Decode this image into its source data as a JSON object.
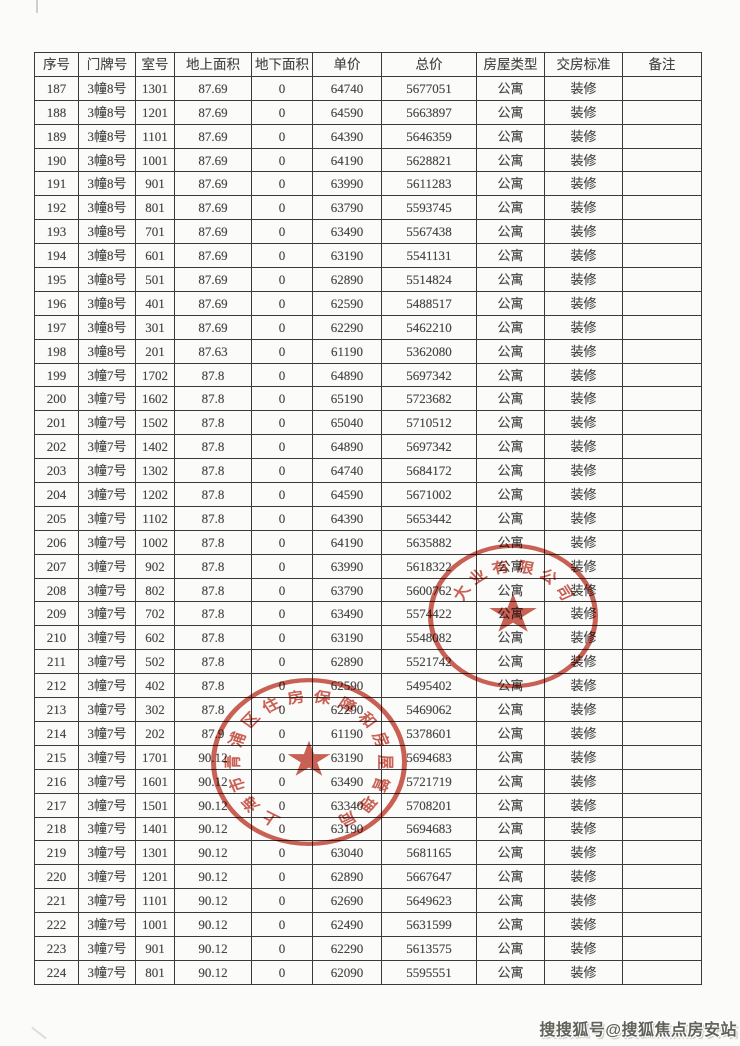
{
  "page": {
    "watermark": "搜搜狐号@搜狐焦点房安站"
  },
  "colors": {
    "stamp_red": "#c0392b",
    "table_border": "#3a3a3a",
    "table_text": "#474747",
    "watermark_text": "#62625a"
  },
  "table": {
    "columns": [
      "序号",
      "门牌号",
      "室号",
      "地上面积",
      "地下面积",
      "单价",
      "总价",
      "房屋类型",
      "交房标准",
      "备注"
    ],
    "column_keys": [
      "index",
      "door_no",
      "room_no",
      "area_above",
      "area_below",
      "unit_price",
      "total_price",
      "house_type",
      "delivery_standard",
      "remark"
    ],
    "rows": [
      [
        "187",
        "3幢8号",
        "1301",
        "87.69",
        "0",
        "64740",
        "5677051",
        "公寓",
        "装修",
        ""
      ],
      [
        "188",
        "3幢8号",
        "1201",
        "87.69",
        "0",
        "64590",
        "5663897",
        "公寓",
        "装修",
        ""
      ],
      [
        "189",
        "3幢8号",
        "1101",
        "87.69",
        "0",
        "64390",
        "5646359",
        "公寓",
        "装修",
        ""
      ],
      [
        "190",
        "3幢8号",
        "1001",
        "87.69",
        "0",
        "64190",
        "5628821",
        "公寓",
        "装修",
        ""
      ],
      [
        "191",
        "3幢8号",
        "901",
        "87.69",
        "0",
        "63990",
        "5611283",
        "公寓",
        "装修",
        ""
      ],
      [
        "192",
        "3幢8号",
        "801",
        "87.69",
        "0",
        "63790",
        "5593745",
        "公寓",
        "装修",
        ""
      ],
      [
        "193",
        "3幢8号",
        "701",
        "87.69",
        "0",
        "63490",
        "5567438",
        "公寓",
        "装修",
        ""
      ],
      [
        "194",
        "3幢8号",
        "601",
        "87.69",
        "0",
        "63190",
        "5541131",
        "公寓",
        "装修",
        ""
      ],
      [
        "195",
        "3幢8号",
        "501",
        "87.69",
        "0",
        "62890",
        "5514824",
        "公寓",
        "装修",
        ""
      ],
      [
        "196",
        "3幢8号",
        "401",
        "87.69",
        "0",
        "62590",
        "5488517",
        "公寓",
        "装修",
        ""
      ],
      [
        "197",
        "3幢8号",
        "301",
        "87.69",
        "0",
        "62290",
        "5462210",
        "公寓",
        "装修",
        ""
      ],
      [
        "198",
        "3幢8号",
        "201",
        "87.63",
        "0",
        "61190",
        "5362080",
        "公寓",
        "装修",
        ""
      ],
      [
        "199",
        "3幢7号",
        "1702",
        "87.8",
        "0",
        "64890",
        "5697342",
        "公寓",
        "装修",
        ""
      ],
      [
        "200",
        "3幢7号",
        "1602",
        "87.8",
        "0",
        "65190",
        "5723682",
        "公寓",
        "装修",
        ""
      ],
      [
        "201",
        "3幢7号",
        "1502",
        "87.8",
        "0",
        "65040",
        "5710512",
        "公寓",
        "装修",
        ""
      ],
      [
        "202",
        "3幢7号",
        "1402",
        "87.8",
        "0",
        "64890",
        "5697342",
        "公寓",
        "装修",
        ""
      ],
      [
        "203",
        "3幢7号",
        "1302",
        "87.8",
        "0",
        "64740",
        "5684172",
        "公寓",
        "装修",
        ""
      ],
      [
        "204",
        "3幢7号",
        "1202",
        "87.8",
        "0",
        "64590",
        "5671002",
        "公寓",
        "装修",
        ""
      ],
      [
        "205",
        "3幢7号",
        "1102",
        "87.8",
        "0",
        "64390",
        "5653442",
        "公寓",
        "装修",
        ""
      ],
      [
        "206",
        "3幢7号",
        "1002",
        "87.8",
        "0",
        "64190",
        "5635882",
        "公寓",
        "装修",
        ""
      ],
      [
        "207",
        "3幢7号",
        "902",
        "87.8",
        "0",
        "63990",
        "5618322",
        "公寓",
        "装修",
        ""
      ],
      [
        "208",
        "3幢7号",
        "802",
        "87.8",
        "0",
        "63790",
        "5600762",
        "公寓",
        "装修",
        ""
      ],
      [
        "209",
        "3幢7号",
        "702",
        "87.8",
        "0",
        "63490",
        "5574422",
        "公寓",
        "装修",
        ""
      ],
      [
        "210",
        "3幢7号",
        "602",
        "87.8",
        "0",
        "63190",
        "5548082",
        "公寓",
        "装修",
        ""
      ],
      [
        "211",
        "3幢7号",
        "502",
        "87.8",
        "0",
        "62890",
        "5521742",
        "公寓",
        "装修",
        ""
      ],
      [
        "212",
        "3幢7号",
        "402",
        "87.8",
        "0",
        "62590",
        "5495402",
        "公寓",
        "装修",
        ""
      ],
      [
        "213",
        "3幢7号",
        "302",
        "87.8",
        "0",
        "62290",
        "5469062",
        "公寓",
        "装修",
        ""
      ],
      [
        "214",
        "3幢7号",
        "202",
        "87.9",
        "0",
        "61190",
        "5378601",
        "公寓",
        "装修",
        ""
      ],
      [
        "215",
        "3幢7号",
        "1701",
        "90.12",
        "0",
        "63190",
        "5694683",
        "公寓",
        "装修",
        ""
      ],
      [
        "216",
        "3幢7号",
        "1601",
        "90.12",
        "0",
        "63490",
        "5721719",
        "公寓",
        "装修",
        ""
      ],
      [
        "217",
        "3幢7号",
        "1501",
        "90.12",
        "0",
        "63340",
        "5708201",
        "公寓",
        "装修",
        ""
      ],
      [
        "218",
        "3幢7号",
        "1401",
        "90.12",
        "0",
        "63190",
        "5694683",
        "公寓",
        "装修",
        ""
      ],
      [
        "219",
        "3幢7号",
        "1301",
        "90.12",
        "0",
        "63040",
        "5681165",
        "公寓",
        "装修",
        ""
      ],
      [
        "220",
        "3幢7号",
        "1201",
        "90.12",
        "0",
        "62890",
        "5667647",
        "公寓",
        "装修",
        ""
      ],
      [
        "221",
        "3幢7号",
        "1101",
        "90.12",
        "0",
        "62690",
        "5649623",
        "公寓",
        "装修",
        ""
      ],
      [
        "222",
        "3幢7号",
        "1001",
        "90.12",
        "0",
        "62490",
        "5631599",
        "公寓",
        "装修",
        ""
      ],
      [
        "223",
        "3幢7号",
        "901",
        "90.12",
        "0",
        "62290",
        "5613575",
        "公寓",
        "装修",
        ""
      ],
      [
        "224",
        "3幢7号",
        "801",
        "90.12",
        "0",
        "62090",
        "5595551",
        "公寓",
        "装修",
        ""
      ]
    ]
  },
  "stamps": [
    {
      "name": "company-seal",
      "arc_text": "大业有限公司",
      "star": "★",
      "arc_start": -62,
      "arc_end": 62,
      "text_radius": 58
    },
    {
      "name": "housing-bureau-seal",
      "arc_text": "上海市青浦区住房保障和房屋管理局",
      "star": "★",
      "arc_start": -150,
      "arc_end": 150,
      "text_radius": 76
    }
  ]
}
